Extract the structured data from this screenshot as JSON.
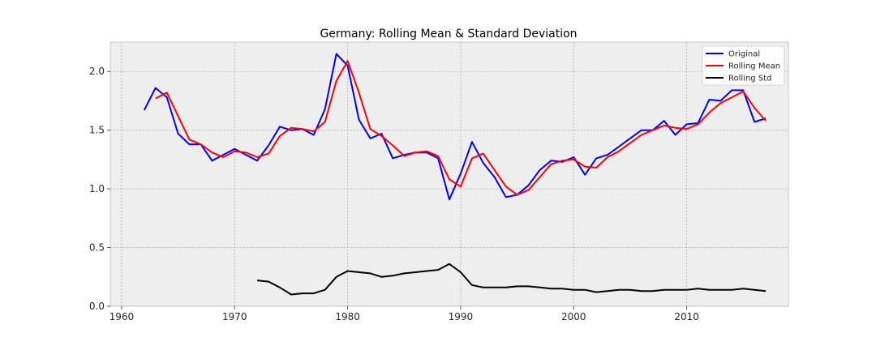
{
  "chart_data": {
    "type": "line",
    "title": "Germany: Rolling Mean & Standard Deviation",
    "xlabel": "",
    "ylabel": "",
    "xlim": [
      1959,
      2019
    ],
    "ylim": [
      0.0,
      2.25
    ],
    "xticks": [
      1960,
      1970,
      1980,
      1990,
      2000,
      2010
    ],
    "yticks": [
      "0.0",
      "0.5",
      "1.0",
      "1.5",
      "2.0"
    ],
    "grid": true,
    "legend_position": "top-right",
    "series": [
      {
        "name": "Original",
        "color": "#0000ff",
        "x": [
          1962,
          1963,
          1964,
          1965,
          1966,
          1967,
          1968,
          1969,
          1970,
          1971,
          1972,
          1973,
          1974,
          1975,
          1976,
          1977,
          1978,
          1979,
          1980,
          1981,
          1982,
          1983,
          1984,
          1985,
          1986,
          1987,
          1988,
          1989,
          1990,
          1991,
          1992,
          1993,
          1994,
          1995,
          1996,
          1997,
          1998,
          1999,
          2000,
          2001,
          2002,
          2003,
          2004,
          2005,
          2006,
          2007,
          2008,
          2009,
          2010,
          2011,
          2012,
          2013,
          2014,
          2015,
          2016,
          2017
        ],
        "y": [
          1.67,
          1.86,
          1.78,
          1.47,
          1.38,
          1.38,
          1.24,
          1.29,
          1.34,
          1.29,
          1.24,
          1.37,
          1.53,
          1.5,
          1.51,
          1.46,
          1.68,
          2.15,
          2.05,
          1.59,
          1.43,
          1.47,
          1.26,
          1.29,
          1.31,
          1.31,
          1.26,
          0.91,
          1.13,
          1.4,
          1.22,
          1.1,
          0.93,
          0.95,
          1.03,
          1.16,
          1.24,
          1.23,
          1.27,
          1.12,
          1.26,
          1.29,
          1.36,
          1.43,
          1.5,
          1.5,
          1.58,
          1.46,
          1.55,
          1.56,
          1.76,
          1.75,
          1.84,
          1.84,
          1.57,
          1.6
        ]
      },
      {
        "name": "Rolling Mean",
        "color": "#ff0000",
        "x": [
          1963,
          1964,
          1965,
          1966,
          1967,
          1968,
          1969,
          1970,
          1971,
          1972,
          1973,
          1974,
          1975,
          1976,
          1977,
          1978,
          1979,
          1980,
          1981,
          1982,
          1983,
          1984,
          1985,
          1986,
          1987,
          1988,
          1989,
          1990,
          1991,
          1992,
          1993,
          1994,
          1995,
          1996,
          1997,
          1998,
          1999,
          2000,
          2001,
          2002,
          2003,
          2004,
          2005,
          2006,
          2007,
          2008,
          2009,
          2010,
          2011,
          2012,
          2013,
          2014,
          2015,
          2016,
          2017
        ],
        "y": [
          1.77,
          1.82,
          1.62,
          1.42,
          1.38,
          1.31,
          1.27,
          1.32,
          1.31,
          1.27,
          1.3,
          1.45,
          1.52,
          1.51,
          1.49,
          1.57,
          1.92,
          2.09,
          1.82,
          1.51,
          1.45,
          1.37,
          1.28,
          1.31,
          1.32,
          1.28,
          1.08,
          1.02,
          1.26,
          1.3,
          1.16,
          1.02,
          0.95,
          0.99,
          1.1,
          1.21,
          1.24,
          1.25,
          1.19,
          1.18,
          1.27,
          1.32,
          1.39,
          1.46,
          1.5,
          1.54,
          1.52,
          1.51,
          1.55,
          1.65,
          1.73,
          1.78,
          1.83,
          1.69,
          1.58
        ]
      },
      {
        "name": "Rolling Std",
        "color": "#000000",
        "x": [
          1972,
          1973,
          1974,
          1975,
          1976,
          1977,
          1978,
          1979,
          1980,
          1981,
          1982,
          1983,
          1984,
          1985,
          1986,
          1987,
          1988,
          1989,
          1990,
          1991,
          1992,
          1993,
          1994,
          1995,
          1996,
          1997,
          1998,
          1999,
          2000,
          2001,
          2002,
          2003,
          2004,
          2005,
          2006,
          2007,
          2008,
          2009,
          2010,
          2011,
          2012,
          2013,
          2014,
          2015,
          2016,
          2017
        ],
        "y": [
          0.22,
          0.21,
          0.16,
          0.1,
          0.11,
          0.11,
          0.14,
          0.25,
          0.3,
          0.29,
          0.28,
          0.25,
          0.26,
          0.28,
          0.29,
          0.3,
          0.31,
          0.36,
          0.29,
          0.18,
          0.16,
          0.16,
          0.16,
          0.17,
          0.17,
          0.16,
          0.15,
          0.15,
          0.14,
          0.14,
          0.12,
          0.13,
          0.14,
          0.14,
          0.13,
          0.13,
          0.14,
          0.14,
          0.14,
          0.15,
          0.14,
          0.14,
          0.14,
          0.15,
          0.14,
          0.13
        ]
      }
    ]
  }
}
